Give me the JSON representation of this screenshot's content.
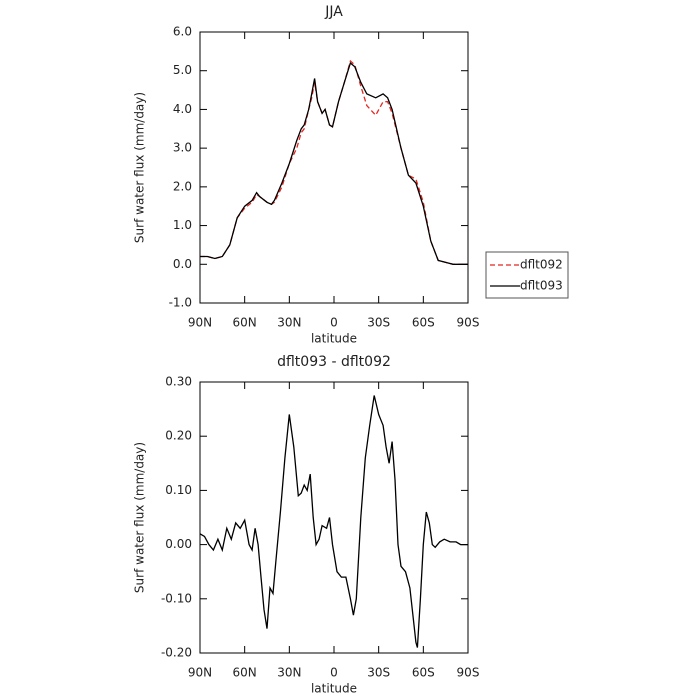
{
  "chart_data": [
    {
      "type": "line",
      "title": "JJA",
      "xlabel": "latitude",
      "ylabel": "Surf water flux (mm/day)",
      "x": [
        90,
        85,
        80,
        75,
        70,
        65,
        60,
        55,
        52,
        50,
        45,
        42,
        40,
        35,
        30,
        25,
        22,
        20,
        17,
        15,
        13,
        11,
        8,
        6,
        3,
        1,
        -3,
        -7,
        -11,
        -14,
        -18,
        -22,
        -28,
        -33,
        -36,
        -39,
        -45,
        -50,
        -55,
        -60,
        -65,
        -70,
        -75,
        -80,
        -85,
        -90
      ],
      "series": [
        {
          "name": "dflt092",
          "color": "#e8251f",
          "dash": true,
          "values": [
            0.2,
            0.2,
            0.15,
            0.2,
            0.5,
            1.2,
            1.45,
            1.6,
            1.8,
            1.75,
            1.6,
            1.55,
            1.6,
            2.0,
            2.6,
            3.0,
            3.4,
            3.5,
            4.0,
            4.3,
            4.7,
            4.2,
            3.9,
            4.0,
            3.6,
            3.55,
            4.2,
            4.7,
            5.25,
            5.15,
            4.6,
            4.1,
            3.85,
            4.2,
            4.2,
            3.9,
            3.0,
            2.3,
            2.2,
            1.6,
            0.6,
            0.1,
            0.05,
            0.0,
            0.0,
            0.0
          ]
        },
        {
          "name": "dflt093",
          "color": "#000000",
          "dash": false,
          "values": [
            0.2,
            0.2,
            0.15,
            0.2,
            0.5,
            1.2,
            1.5,
            1.65,
            1.85,
            1.75,
            1.6,
            1.55,
            1.65,
            2.1,
            2.6,
            3.2,
            3.5,
            3.6,
            4.0,
            4.4,
            4.8,
            4.2,
            3.9,
            4.0,
            3.6,
            3.55,
            4.2,
            4.7,
            5.2,
            5.1,
            4.7,
            4.4,
            4.3,
            4.4,
            4.3,
            4.0,
            3.0,
            2.3,
            2.1,
            1.5,
            0.6,
            0.1,
            0.05,
            0.0,
            0.0,
            0.0
          ]
        }
      ],
      "xlim": [
        90,
        -90
      ],
      "xticks": [
        {
          "value": 90,
          "label": "90N"
        },
        {
          "value": 60,
          "label": "60N"
        },
        {
          "value": 30,
          "label": "30N"
        },
        0,
        {
          "value": -30,
          "label": "30S"
        },
        {
          "value": -60,
          "label": "60S"
        },
        {
          "value": -90,
          "label": "90S"
        }
      ],
      "ylim": [
        -1,
        6
      ],
      "yticks": [
        {
          "value": -1,
          "label": "-1.0"
        },
        {
          "value": 0,
          "label": "0.0"
        },
        {
          "value": 1,
          "label": "1.0"
        },
        {
          "value": 2,
          "label": "2.0"
        },
        {
          "value": 3,
          "label": "3.0"
        },
        {
          "value": 4,
          "label": "4.0"
        },
        {
          "value": 5,
          "label": "5.0"
        },
        {
          "value": 6,
          "label": "6.0"
        }
      ],
      "legend": "right"
    },
    {
      "type": "line",
      "title": "dflt093 - dflt092",
      "xlabel": "latitude",
      "ylabel": "Surf water flux (mm/day)",
      "x": [
        90,
        87,
        84,
        81,
        78,
        75,
        72,
        69,
        66,
        63,
        60,
        57,
        55,
        53,
        51,
        49,
        47,
        45,
        43,
        41,
        39,
        36,
        33,
        30,
        27,
        24,
        22,
        20,
        18,
        16,
        14,
        12,
        10,
        8,
        5,
        3,
        1,
        -2,
        -5,
        -8,
        -11,
        -13,
        -15,
        -18,
        -21,
        -24,
        -27,
        -30,
        -33,
        -35,
        -37,
        -39,
        -41,
        -43,
        -45,
        -48,
        -51,
        -53,
        -55,
        -56,
        -58,
        -60,
        -62,
        -64,
        -66,
        -68,
        -71,
        -74,
        -78,
        -82,
        -85,
        -90
      ],
      "series": [
        {
          "name": "dflt093 - dflt092",
          "color": "#000000",
          "dash": false,
          "values": [
            0.02,
            0.015,
            0.0,
            -0.01,
            0.01,
            -0.01,
            0.03,
            0.01,
            0.04,
            0.03,
            0.045,
            0.0,
            -0.01,
            0.03,
            0.0,
            -0.06,
            -0.12,
            -0.155,
            -0.08,
            -0.09,
            -0.03,
            0.06,
            0.16,
            0.24,
            0.18,
            0.09,
            0.095,
            0.11,
            0.1,
            0.13,
            0.05,
            0.0,
            0.01,
            0.035,
            0.03,
            0.05,
            0.0,
            -0.05,
            -0.06,
            -0.06,
            -0.1,
            -0.13,
            -0.1,
            0.05,
            0.16,
            0.22,
            0.275,
            0.24,
            0.22,
            0.18,
            0.15,
            0.19,
            0.12,
            0.0,
            -0.04,
            -0.05,
            -0.08,
            -0.13,
            -0.18,
            -0.19,
            -0.1,
            0.0,
            0.06,
            0.04,
            0.0,
            -0.005,
            0.005,
            0.01,
            0.005,
            0.005,
            0.0,
            0.0
          ]
        }
      ],
      "xlim": [
        90,
        -90
      ],
      "xticks": [
        {
          "value": 90,
          "label": "90N"
        },
        {
          "value": 60,
          "label": "60N"
        },
        {
          "value": 30,
          "label": "30N"
        },
        0,
        {
          "value": -30,
          "label": "30S"
        },
        {
          "value": -60,
          "label": "60S"
        },
        {
          "value": -90,
          "label": "90S"
        }
      ],
      "ylim": [
        -0.2,
        0.3
      ],
      "yticks": [
        {
          "value": -0.2,
          "label": "-0.20"
        },
        {
          "value": -0.1,
          "label": "-0.10"
        },
        {
          "value": 0,
          "label": "0.00"
        },
        {
          "value": 0.1,
          "label": "0.10"
        },
        {
          "value": 0.2,
          "label": "0.20"
        },
        {
          "value": 0.3,
          "label": "0.30"
        }
      ]
    }
  ]
}
